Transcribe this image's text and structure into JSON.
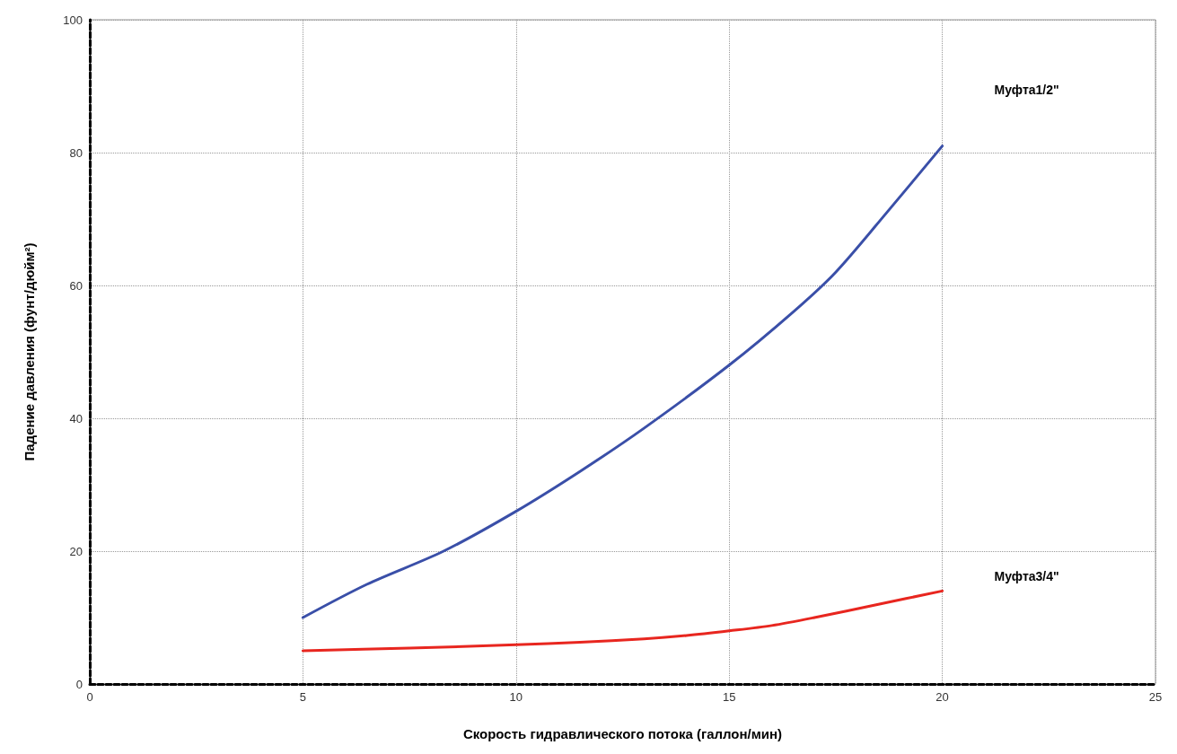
{
  "chart_data": {
    "type": "line",
    "xlabel": "Скорость гидравлического потока (галлон/мин)",
    "ylabel": "Падение давления (фунт/дюйм²)",
    "xlim": [
      0,
      25
    ],
    "xticks": [
      0,
      5,
      10,
      15,
      20,
      25
    ],
    "ylim": [
      0,
      100
    ],
    "yticks": [
      0,
      20,
      40,
      60,
      80,
      100
    ],
    "grid": true,
    "legend": false,
    "marker": "none",
    "line_style": "solid",
    "series": [
      {
        "name": "Муфта1/2\"",
        "color": "#3a4fa8",
        "x": [
          5,
          6.5,
          8.3,
          10,
          11.5,
          13,
          15,
          16.5,
          17.5,
          18.7,
          20
        ],
        "values": [
          10,
          15,
          20,
          26,
          32,
          38.5,
          48,
          56,
          62,
          71,
          81
        ]
      },
      {
        "name": "Муфта3/4\"",
        "color": "#e8261f",
        "x": [
          5,
          7.5,
          10,
          11.5,
          13,
          14,
          15,
          16,
          17,
          18.5,
          20
        ],
        "values": [
          5,
          5.4,
          5.9,
          6.3,
          6.8,
          7.3,
          8,
          8.8,
          10,
          12,
          14
        ]
      }
    ]
  }
}
